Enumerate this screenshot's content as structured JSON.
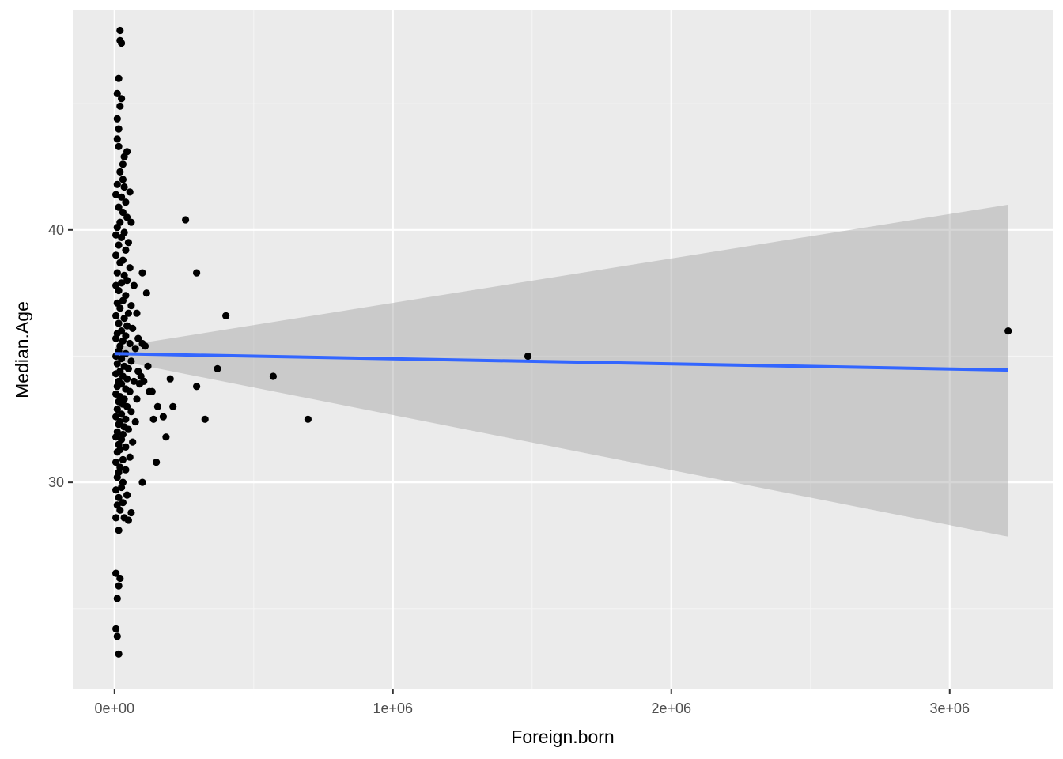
{
  "chart_data": {
    "type": "scatter",
    "title": "",
    "xlabel": "Foreign.born",
    "ylabel": "Median.Age",
    "xlim": [
      -150000,
      3370000
    ],
    "ylim": [
      21.8,
      48.7
    ],
    "x_ticks": [
      {
        "value": 0,
        "label": "0e+00"
      },
      {
        "value": 1000000,
        "label": "1e+06"
      },
      {
        "value": 2000000,
        "label": "2e+06"
      },
      {
        "value": 3000000,
        "label": "3e+06"
      }
    ],
    "x_minor_ticks": [
      500000,
      1500000,
      2500000
    ],
    "y_ticks": [
      {
        "value": 30,
        "label": "30"
      },
      {
        "value": 40,
        "label": "40"
      }
    ],
    "y_minor_ticks": [
      25,
      35,
      45
    ],
    "grid": true,
    "legend": "none",
    "colors": {
      "panel_background": "#ebebeb",
      "grid_major": "#ffffff",
      "grid_minor": "#f5f5f5",
      "points": "#000000",
      "fit_line": "#3366ff",
      "confidence_band": "#999999"
    },
    "fit": {
      "method": "linear",
      "x_start": 0,
      "x_end": 3210000,
      "y_start": 35.1,
      "y_end": 34.45,
      "band_lower_start": 34.85,
      "band_upper_start": 35.35,
      "band_lower_end": 27.85,
      "band_upper_end": 41.0
    },
    "points": [
      [
        20000,
        47.9
      ],
      [
        20000,
        47.5
      ],
      [
        25000,
        47.4
      ],
      [
        15000,
        46.0
      ],
      [
        10000,
        45.4
      ],
      [
        25000,
        45.2
      ],
      [
        20000,
        44.9
      ],
      [
        10000,
        44.4
      ],
      [
        15000,
        44.0
      ],
      [
        10000,
        43.6
      ],
      [
        15000,
        43.3
      ],
      [
        45000,
        43.1
      ],
      [
        35000,
        42.9
      ],
      [
        30000,
        42.6
      ],
      [
        20000,
        42.3
      ],
      [
        30000,
        42.0
      ],
      [
        10000,
        41.8
      ],
      [
        35000,
        41.7
      ],
      [
        55000,
        41.5
      ],
      [
        5000,
        41.4
      ],
      [
        25000,
        41.3
      ],
      [
        40000,
        41.1
      ],
      [
        15000,
        40.9
      ],
      [
        30000,
        40.7
      ],
      [
        45000,
        40.5
      ],
      [
        20000,
        40.3
      ],
      [
        60000,
        40.3
      ],
      [
        10000,
        40.1
      ],
      [
        35000,
        39.9
      ],
      [
        5000,
        39.8
      ],
      [
        25000,
        39.7
      ],
      [
        50000,
        39.5
      ],
      [
        15000,
        39.4
      ],
      [
        40000,
        39.2
      ],
      [
        5000,
        39.0
      ],
      [
        30000,
        38.8
      ],
      [
        20000,
        38.7
      ],
      [
        55000,
        38.5
      ],
      [
        10000,
        38.3
      ],
      [
        35000,
        38.2
      ],
      [
        45000,
        38.0
      ],
      [
        25000,
        37.9
      ],
      [
        5000,
        37.8
      ],
      [
        70000,
        37.8
      ],
      [
        15000,
        37.6
      ],
      [
        40000,
        37.4
      ],
      [
        30000,
        37.2
      ],
      [
        10000,
        37.1
      ],
      [
        60000,
        37.0
      ],
      [
        20000,
        36.9
      ],
      [
        50000,
        36.7
      ],
      [
        5000,
        36.6
      ],
      [
        80000,
        36.7
      ],
      [
        35000,
        36.5
      ],
      [
        15000,
        36.3
      ],
      [
        45000,
        36.2
      ],
      [
        25000,
        36.0
      ],
      [
        65000,
        36.1
      ],
      [
        10000,
        35.9
      ],
      [
        40000,
        35.8
      ],
      [
        5000,
        35.7
      ],
      [
        30000,
        35.6
      ],
      [
        55000,
        35.5
      ],
      [
        20000,
        35.4
      ],
      [
        75000,
        35.3
      ],
      [
        15000,
        35.2
      ],
      [
        40000,
        35.1
      ],
      [
        5000,
        35.0
      ],
      [
        25000,
        34.9
      ],
      [
        60000,
        34.8
      ],
      [
        10000,
        34.7
      ],
      [
        35000,
        34.6
      ],
      [
        50000,
        34.5
      ],
      [
        20000,
        34.4
      ],
      [
        85000,
        34.4
      ],
      [
        5000,
        34.3
      ],
      [
        30000,
        34.2
      ],
      [
        45000,
        34.1
      ],
      [
        15000,
        34.0
      ],
      [
        70000,
        34.0
      ],
      [
        25000,
        33.9
      ],
      [
        10000,
        33.8
      ],
      [
        40000,
        33.7
      ],
      [
        55000,
        33.6
      ],
      [
        5000,
        33.5
      ],
      [
        20000,
        33.4
      ],
      [
        35000,
        33.3
      ],
      [
        80000,
        33.3
      ],
      [
        15000,
        33.2
      ],
      [
        30000,
        33.1
      ],
      [
        45000,
        33.0
      ],
      [
        10000,
        32.9
      ],
      [
        60000,
        32.8
      ],
      [
        25000,
        32.7
      ],
      [
        5000,
        32.6
      ],
      [
        40000,
        32.5
      ],
      [
        20000,
        32.4
      ],
      [
        75000,
        32.4
      ],
      [
        15000,
        32.3
      ],
      [
        35000,
        32.2
      ],
      [
        50000,
        32.1
      ],
      [
        10000,
        32.0
      ],
      [
        30000,
        31.9
      ],
      [
        5000,
        31.8
      ],
      [
        25000,
        31.7
      ],
      [
        65000,
        31.6
      ],
      [
        15000,
        31.5
      ],
      [
        40000,
        31.4
      ],
      [
        20000,
        31.3
      ],
      [
        10000,
        31.2
      ],
      [
        55000,
        31.0
      ],
      [
        30000,
        30.9
      ],
      [
        5000,
        30.8
      ],
      [
        20000,
        30.6
      ],
      [
        40000,
        30.5
      ],
      [
        15000,
        30.4
      ],
      [
        10000,
        30.2
      ],
      [
        30000,
        30.0
      ],
      [
        25000,
        29.8
      ],
      [
        5000,
        29.7
      ],
      [
        45000,
        29.5
      ],
      [
        15000,
        29.4
      ],
      [
        30000,
        29.2
      ],
      [
        10000,
        29.1
      ],
      [
        20000,
        28.9
      ],
      [
        60000,
        28.8
      ],
      [
        5000,
        28.6
      ],
      [
        35000,
        28.6
      ],
      [
        50000,
        28.5
      ],
      [
        15000,
        28.1
      ],
      [
        5000,
        26.4
      ],
      [
        20000,
        26.2
      ],
      [
        15000,
        25.9
      ],
      [
        10000,
        25.4
      ],
      [
        5000,
        24.2
      ],
      [
        10000,
        23.9
      ],
      [
        15000,
        23.2
      ],
      [
        100000,
        38.3
      ],
      [
        115000,
        37.5
      ],
      [
        85000,
        35.7
      ],
      [
        100000,
        35.5
      ],
      [
        110000,
        35.4
      ],
      [
        120000,
        34.6
      ],
      [
        95000,
        34.2
      ],
      [
        105000,
        34.0
      ],
      [
        125000,
        33.6
      ],
      [
        90000,
        33.9
      ],
      [
        135000,
        33.6
      ],
      [
        155000,
        33.0
      ],
      [
        175000,
        32.6
      ],
      [
        200000,
        34.1
      ],
      [
        210000,
        33.0
      ],
      [
        140000,
        32.5
      ],
      [
        185000,
        31.8
      ],
      [
        150000,
        30.8
      ],
      [
        100000,
        30.0
      ],
      [
        255000,
        40.4
      ],
      [
        295000,
        38.3
      ],
      [
        400000,
        36.6
      ],
      [
        370000,
        34.5
      ],
      [
        295000,
        33.8
      ],
      [
        325000,
        32.5
      ],
      [
        570000,
        34.2
      ],
      [
        695000,
        32.5
      ],
      [
        1485000,
        35.0
      ],
      [
        3210000,
        36.0
      ]
    ]
  }
}
